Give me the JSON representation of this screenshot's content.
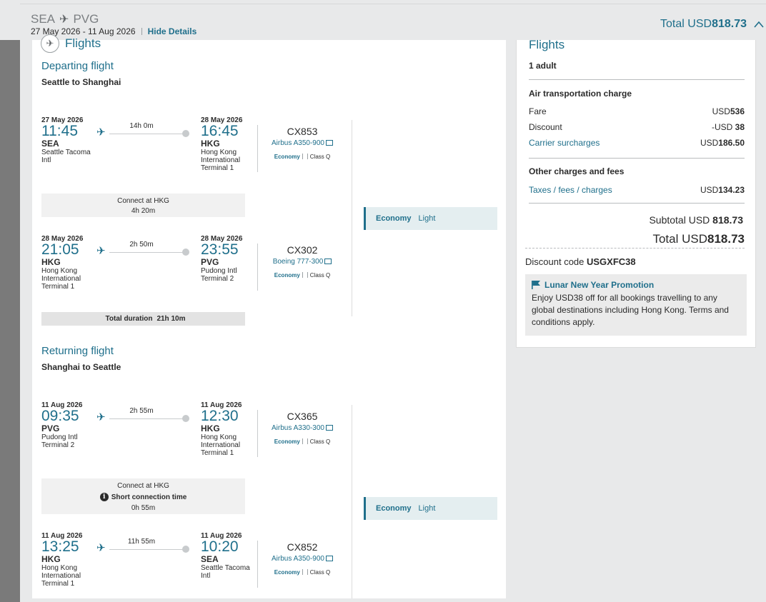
{
  "header": {
    "origin": "SEA",
    "destination": "PVG",
    "dates": "27 May 2026 - 11 Aug 2026",
    "hide_details": "Hide Details",
    "total_label": "Total USD",
    "total_amount": "818.73"
  },
  "main": {
    "section_title": "Flights",
    "departing": {
      "title": "Departing flight",
      "subtitle": "Seattle to Shanghai",
      "segments": [
        {
          "dep_date": "27 May 2026",
          "dep_time": "11:45",
          "dep_code": "SEA",
          "dep_name": "Seattle Tacoma Intl",
          "duration": "14h 0m",
          "arr_date": "28 May 2026",
          "arr_time": "16:45",
          "arr_code": "HKG",
          "arr_name": "Hong Kong International Terminal 1",
          "flight_no": "CX853",
          "aircraft": "Airbus A350-900",
          "cabin": "Economy",
          "class": "Class Q"
        },
        {
          "dep_date": "28 May 2026",
          "dep_time": "21:05",
          "dep_code": "HKG",
          "dep_name": "Hong Kong International Terminal 1",
          "duration": "2h 50m",
          "arr_date": "28 May 2026",
          "arr_time": "23:55",
          "arr_code": "PVG",
          "arr_name": "Pudong Intl Terminal 2",
          "flight_no": "CX302",
          "aircraft": "Boeing 777-300",
          "cabin": "Economy",
          "class": "Class Q"
        }
      ],
      "connection": {
        "label": "Connect at HKG",
        "time": "4h 20m"
      },
      "total_duration_label": "Total duration",
      "total_duration": "21h 10m",
      "fare_cabin": "Economy",
      "fare_brand": "Light"
    },
    "returning": {
      "title": "Returning flight",
      "subtitle": "Shanghai to Seattle",
      "segments": [
        {
          "dep_date": "11 Aug 2026",
          "dep_time": "09:35",
          "dep_code": "PVG",
          "dep_name": "Pudong Intl Terminal 2",
          "duration": "2h 55m",
          "arr_date": "11 Aug 2026",
          "arr_time": "12:30",
          "arr_code": "HKG",
          "arr_name": "Hong Kong International Terminal 1",
          "flight_no": "CX365",
          "aircraft": "Airbus A330-300",
          "cabin": "Economy",
          "class": "Class Q"
        },
        {
          "dep_date": "11 Aug 2026",
          "dep_time": "13:25",
          "dep_code": "HKG",
          "dep_name": "Hong Kong International Terminal 1",
          "duration": "11h 55m",
          "arr_date": "11 Aug 2026",
          "arr_time": "10:20",
          "arr_code": "SEA",
          "arr_name": "Seattle Tacoma Intl",
          "flight_no": "CX852",
          "aircraft": "Airbus A350-900",
          "cabin": "Economy",
          "class": "Class Q"
        }
      ],
      "connection": {
        "label": "Connect at HKG",
        "warning": "Short connection time",
        "time": "0h 55m"
      },
      "fare_cabin": "Economy",
      "fare_brand": "Light"
    }
  },
  "summary": {
    "title": "Flights",
    "passengers": "1 adult",
    "air_heading": "Air transportation charge",
    "fare_label": "Fare",
    "fare_cur": "USD",
    "fare_amt": "536",
    "discount_label": "Discount",
    "discount_cur": "-USD ",
    "discount_amt": "38",
    "carrier_label": "Carrier surcharges",
    "carrier_cur": "USD",
    "carrier_amt": "186.50",
    "other_heading": "Other charges and fees",
    "taxes_label": "Taxes / fees / charges",
    "taxes_cur": "USD",
    "taxes_amt": "134.23",
    "subtotal_label": "Subtotal USD ",
    "subtotal_amt": "818.73",
    "total_label": "Total USD",
    "total_amt": "818.73",
    "discount_code_label": "Discount code ",
    "discount_code": "USGXFC38",
    "promo_title": "Lunar New Year Promotion",
    "promo_text": "Enjoy USD38 off for all bookings travelling to any global destinations including Hong Kong. Terms and conditions apply."
  },
  "colors": {
    "accent": "#1f6f8b",
    "panel_bg": "#e8e9ea",
    "fare_card": "#e4eef0"
  }
}
